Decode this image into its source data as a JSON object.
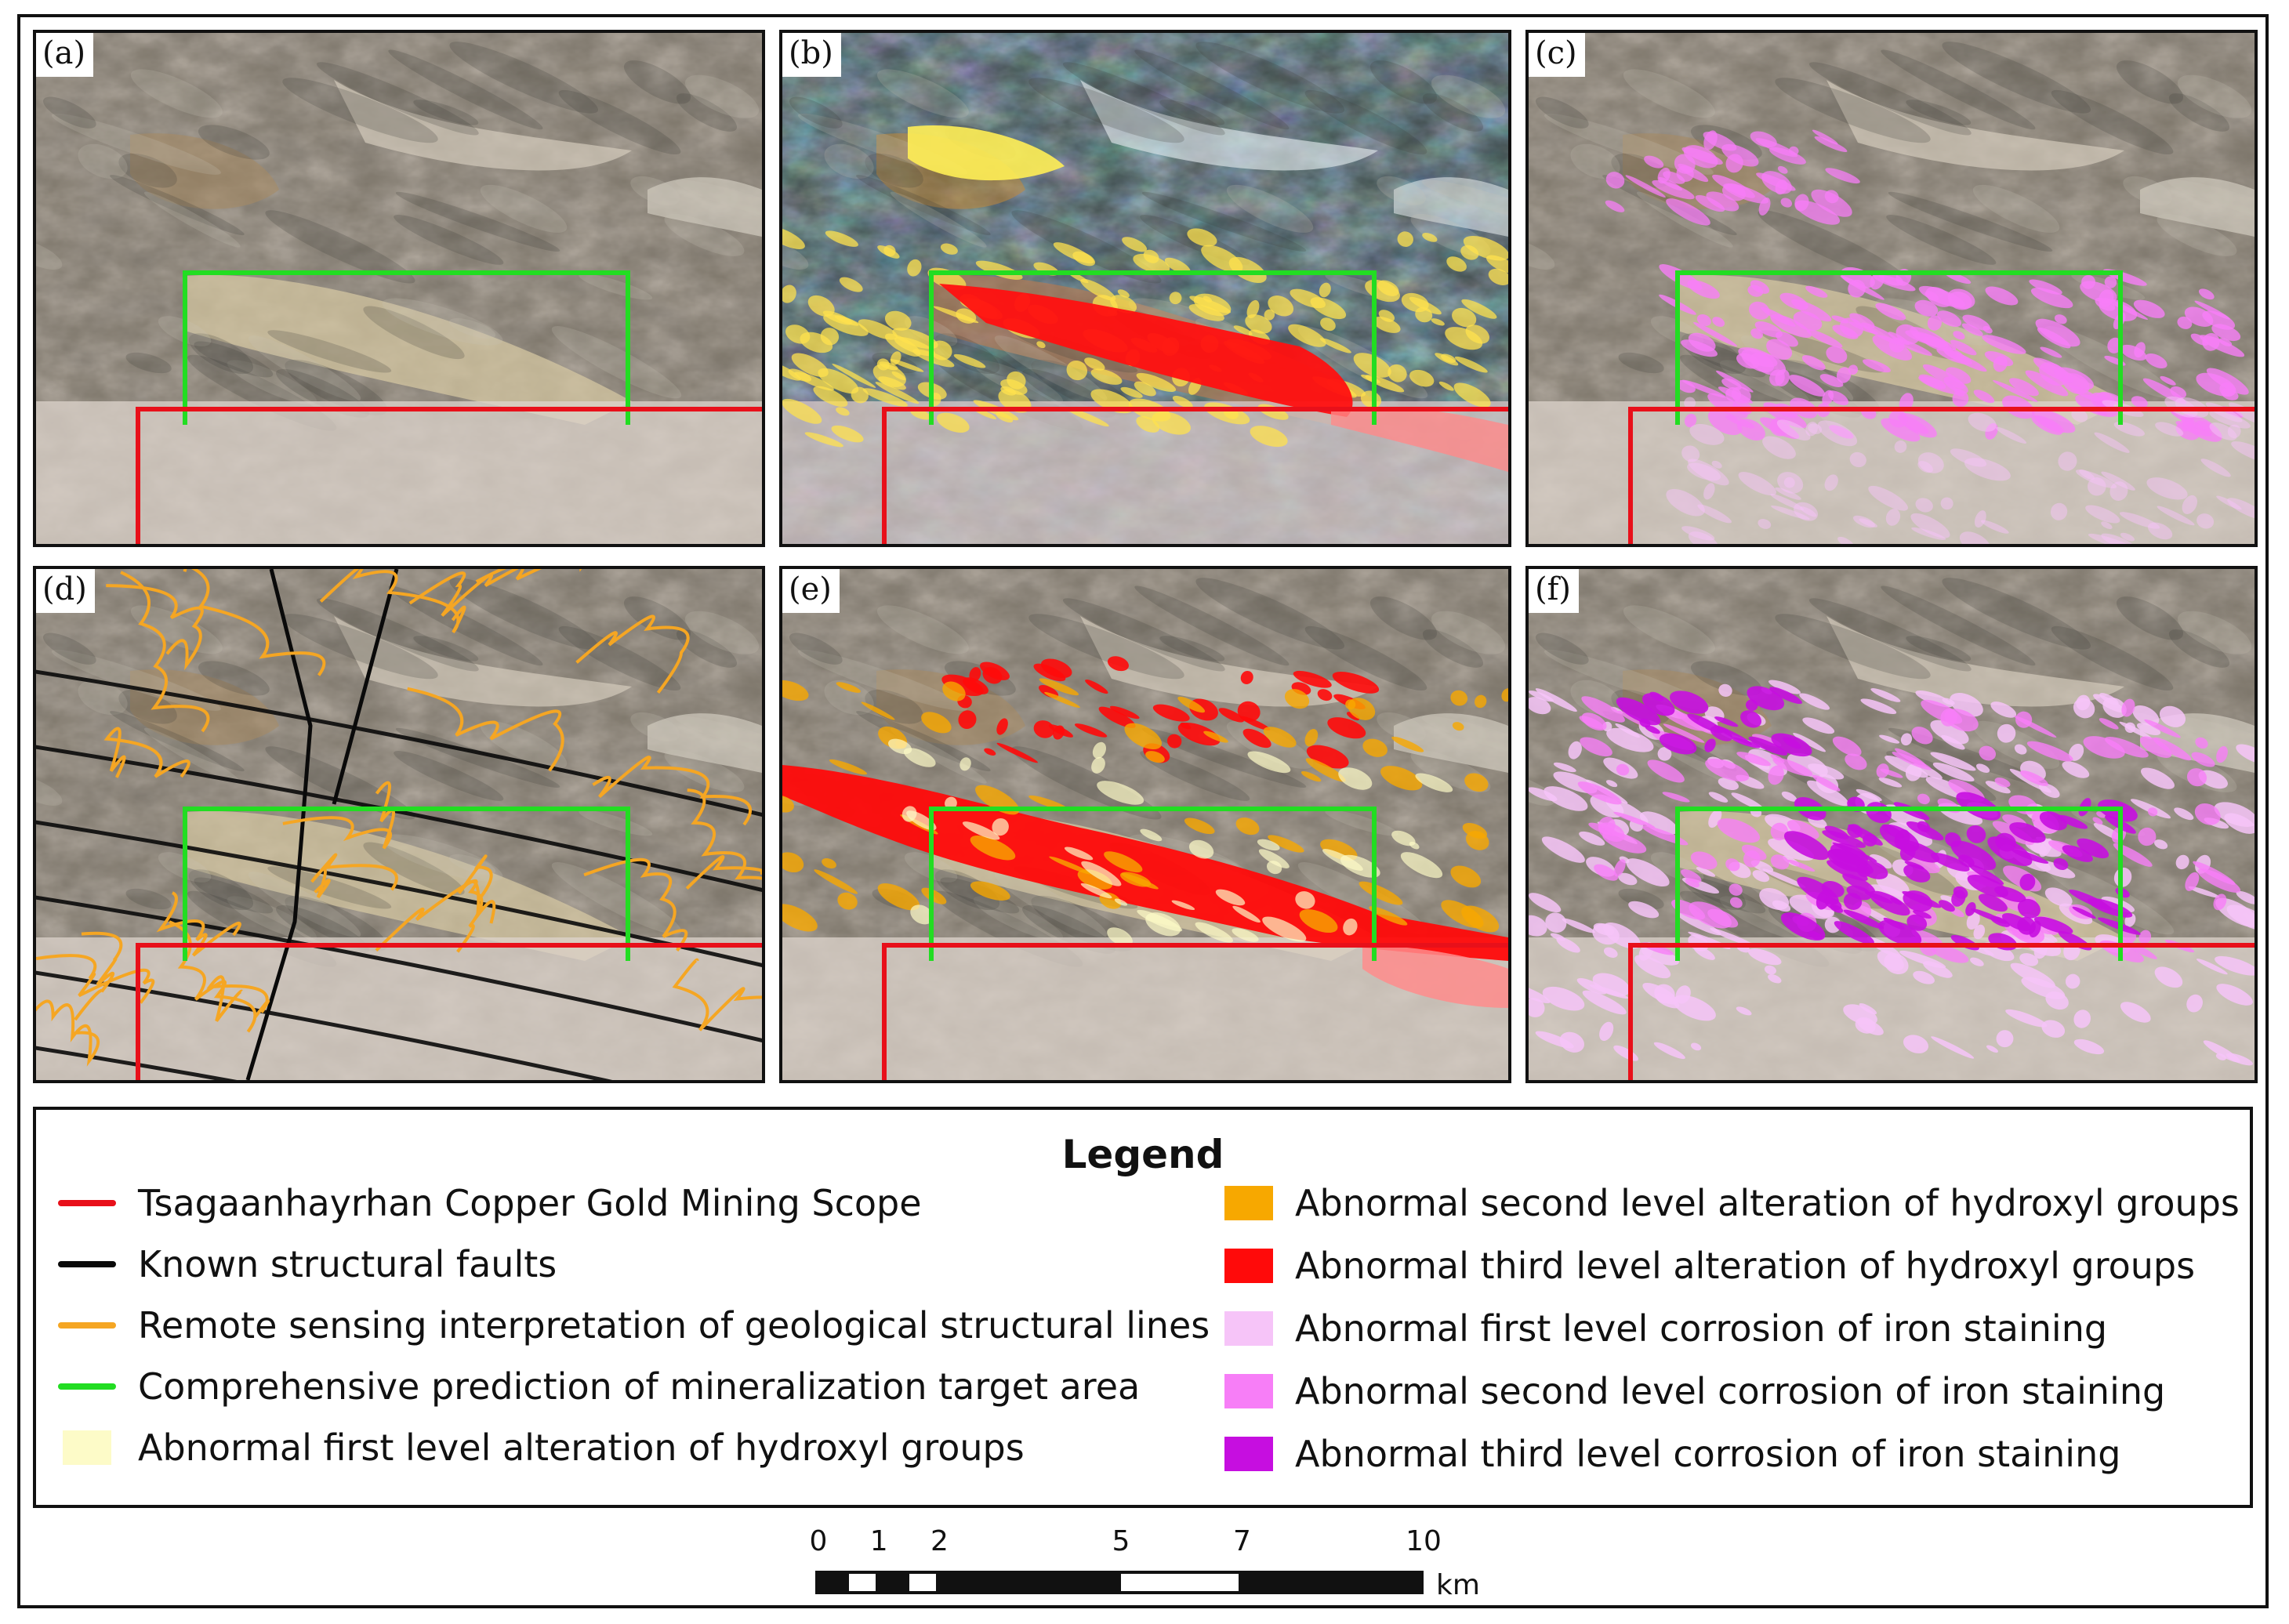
{
  "panels": [
    {
      "label": "(a)",
      "overlay": "none"
    },
    {
      "label": "(b)",
      "overlay": "false-color"
    },
    {
      "label": "(c)",
      "overlay": "iron-light"
    },
    {
      "label": "(d)",
      "overlay": "structures"
    },
    {
      "label": "(e)",
      "overlay": "hydroxyl"
    },
    {
      "label": "(f)",
      "overlay": "iron-full"
    }
  ],
  "legend": {
    "title": "Legend",
    "items": [
      {
        "label": "Tsagaanhayrhan Copper Gold Mining Scope",
        "type": "line",
        "color": "#e8101a"
      },
      {
        "label": "Known structural faults",
        "type": "line",
        "color": "#0a0a0a"
      },
      {
        "label": "Remote sensing interpretation of geological structural lines",
        "type": "line",
        "color": "#f5a623"
      },
      {
        "label": "Comprehensive prediction of mineralization target area",
        "type": "line",
        "color": "#22dd22"
      },
      {
        "label": "Abnormal first level alteration of hydroxyl groups",
        "type": "box",
        "color": "#fdfbc8"
      },
      {
        "label": "Abnormal second level alteration of hydroxyl groups",
        "type": "box",
        "color": "#f7a800"
      },
      {
        "label": "Abnormal third level alteration of hydroxyl groups",
        "type": "box",
        "color": "#ff0a0a"
      },
      {
        "label": "Abnormal first level corrosion of iron staining",
        "type": "box",
        "color": "#f6c4f8"
      },
      {
        "label": "Abnormal second level corrosion of iron staining",
        "type": "box",
        "color": "#f77ef7"
      },
      {
        "label": "Abnormal third level corrosion of iron staining",
        "type": "box",
        "color": "#c60ee0"
      }
    ]
  },
  "scale_bar": {
    "ticks": [
      "0",
      "1",
      "2",
      "5",
      "7",
      "10"
    ],
    "tick_values": [
      0,
      1,
      2,
      5,
      7,
      10
    ],
    "unit": "km",
    "segments": [
      {
        "from": 0,
        "to": 0.5,
        "fill": "#111111"
      },
      {
        "from": 0.5,
        "to": 1,
        "fill": "#ffffff"
      },
      {
        "from": 1,
        "to": 1.5,
        "fill": "#111111"
      },
      {
        "from": 1.5,
        "to": 2,
        "fill": "#ffffff"
      },
      {
        "from": 2,
        "to": 5,
        "fill": "#111111"
      },
      {
        "from": 5,
        "to": 7,
        "fill": "#ffffff"
      },
      {
        "from": 7,
        "to": 10,
        "fill": "#111111"
      }
    ]
  }
}
